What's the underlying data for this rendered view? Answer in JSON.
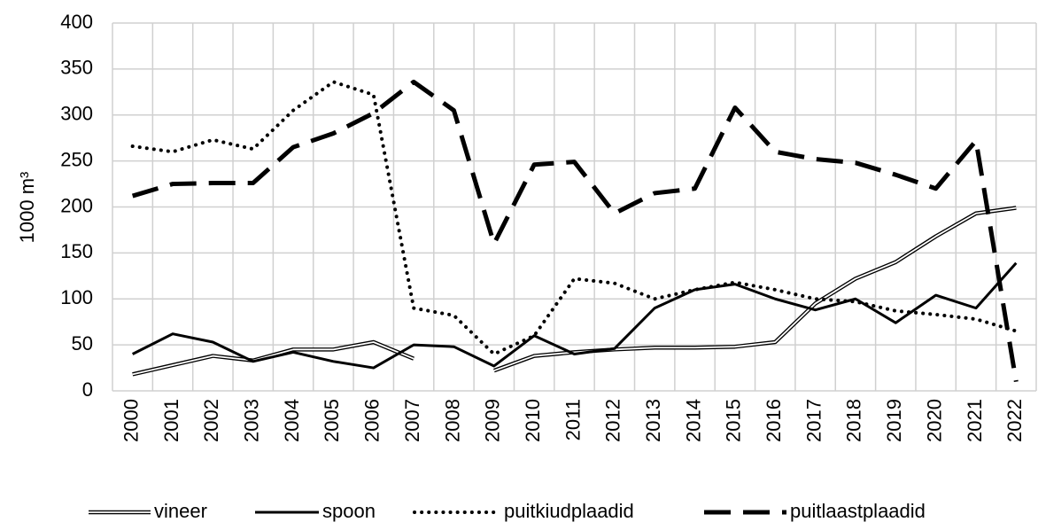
{
  "chart_data": {
    "type": "line",
    "y_label": "1000 m³",
    "categories": [
      "2000",
      "2001",
      "2002",
      "2003",
      "2004",
      "2005",
      "2006",
      "2007",
      "2008",
      "2009",
      "2010",
      "2011",
      "2012",
      "2013",
      "2014",
      "2015",
      "2016",
      "2017",
      "2018",
      "2019",
      "2020",
      "2021",
      "2022"
    ],
    "series": [
      {
        "name": "vineer",
        "color": "#000000",
        "style": "double",
        "values": [
          18,
          28,
          38,
          33,
          45,
          45,
          53,
          35,
          null,
          22,
          38,
          42,
          45,
          47,
          47,
          48,
          53,
          95,
          122,
          140,
          168,
          193,
          199
        ]
      },
      {
        "name": "spoon",
        "color": "#000000",
        "style": "solid",
        "values": [
          40,
          62,
          53,
          32,
          42,
          32,
          25,
          50,
          48,
          27,
          60,
          40,
          46,
          90,
          110,
          116,
          100,
          88,
          100,
          74,
          104,
          90,
          139
        ]
      },
      {
        "name": "puitkiudplaadid",
        "color": "#000000",
        "style": "dotted",
        "values": [
          266,
          260,
          273,
          263,
          305,
          336,
          322,
          90,
          82,
          40,
          60,
          122,
          117,
          100,
          110,
          118,
          110,
          100,
          97,
          87,
          83,
          78,
          65
        ]
      },
      {
        "name": "puitlaastplaadid",
        "color": "#000000",
        "style": "dashed",
        "values": [
          212,
          225,
          226,
          226,
          265,
          280,
          302,
          336,
          305,
          160,
          246,
          249,
          193,
          215,
          220,
          308,
          260,
          252,
          248,
          235,
          220,
          272,
          10
        ]
      }
    ],
    "ylim": [
      0,
      400
    ],
    "yticks": [
      0,
      50,
      100,
      150,
      200,
      250,
      300,
      350,
      400
    ],
    "grid": true,
    "legend": "bottom"
  }
}
